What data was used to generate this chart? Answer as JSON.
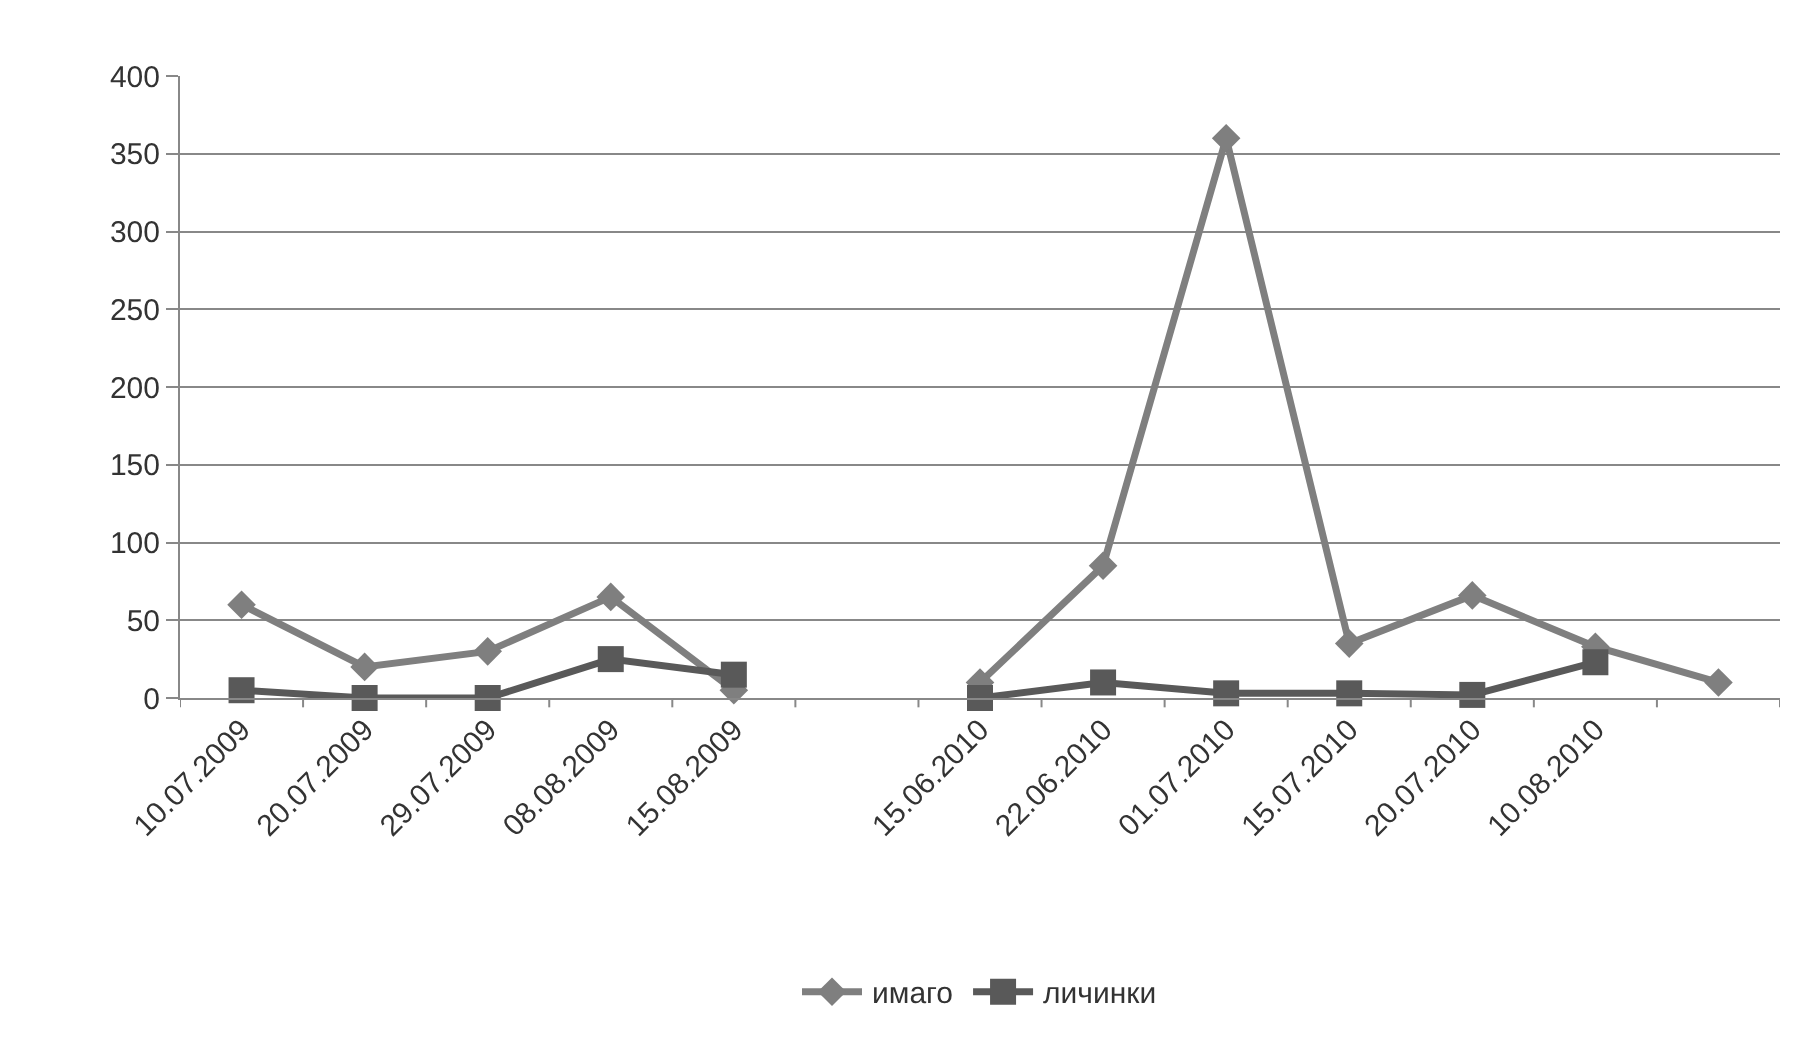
{
  "chart_data": {
    "type": "line",
    "categories": [
      "10.07.2009",
      "20.07.2009",
      "29.07.2009",
      "08.08.2009",
      "15.08.2009",
      null,
      "15.06.2010",
      "22.06.2010",
      "01.07.2010",
      "15.07.2010",
      "20.07.2010",
      "10.08.2010",
      null
    ],
    "series": [
      {
        "name": "имаго",
        "color": "#7f7f7f",
        "marker": "diamond",
        "values": [
          60,
          20,
          30,
          65,
          5,
          null,
          10,
          85,
          360,
          35,
          66,
          33,
          10
        ]
      },
      {
        "name": "личинки",
        "color": "#595959",
        "marker": "square",
        "values": [
          5,
          0,
          0,
          25,
          15,
          null,
          0,
          10,
          3,
          3,
          2,
          23,
          null
        ]
      }
    ],
    "ylim": [
      0,
      400
    ],
    "yticks": [
      0,
      50,
      100,
      150,
      200,
      250,
      300,
      350,
      400
    ],
    "grid": "y",
    "legend": "bottom",
    "line_style": "solid"
  }
}
